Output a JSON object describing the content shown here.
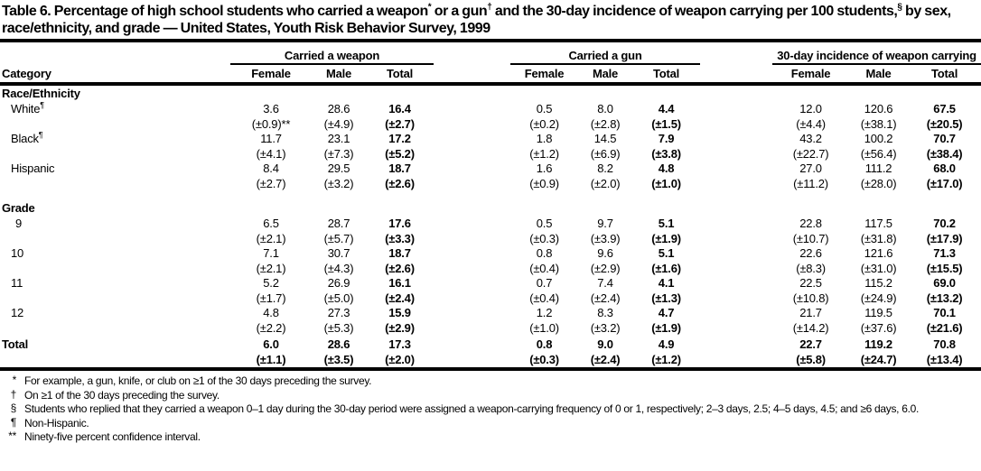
{
  "page": {
    "background": "#ffffff",
    "text_color": "#000000"
  },
  "title_segments": [
    {
      "text": "Table 6. Percentage of high school students who carried a weapon",
      "sup": false
    },
    {
      "text": "*",
      "sup": true
    },
    {
      "text": " or a gun",
      "sup": false
    },
    {
      "text": "†",
      "sup": true
    },
    {
      "text": " and the 30-day incidence of weapon carrying per 100 students,",
      "sup": false
    },
    {
      "text": "§",
      "sup": true
    },
    {
      "text": " by sex, race/ethnicity, and grade — United States, Youth Risk Behavior Survey, 1999",
      "sup": false
    }
  ],
  "table": {
    "category_header": "Category",
    "groups": [
      {
        "label": "Carried a weapon",
        "columns": [
          "Female",
          "Male",
          "Total"
        ]
      },
      {
        "label": "Carried a gun",
        "columns": [
          "Female",
          "Male",
          "Total"
        ]
      },
      {
        "label": "30-day incidence of weapon carrying",
        "columns": [
          "Female",
          "Male",
          "Total"
        ]
      }
    ],
    "sections": [
      {
        "label": "Race/Ethnicity",
        "rows": [
          {
            "category": "White",
            "marker": "¶",
            "values": [
              "3.6",
              "28.6",
              "16.4",
              "0.5",
              "8.0",
              "4.4",
              "12.0",
              "120.6",
              "67.5"
            ],
            "ci": [
              "(±0.9)**",
              "(±4.9)",
              "(±2.7)",
              "(±0.2)",
              "(±2.8)",
              "(±1.5)",
              "(±4.4)",
              "(±38.1)",
              "(±20.5)"
            ]
          },
          {
            "category": "Black",
            "marker": "¶",
            "values": [
              "11.7",
              "23.1",
              "17.2",
              "1.8",
              "14.5",
              "7.9",
              "43.2",
              "100.2",
              "70.7"
            ],
            "ci": [
              "(±4.1)",
              "(±7.3)",
              "(±5.2)",
              "(±1.2)",
              "(±6.9)",
              "(±3.8)",
              "(±22.7)",
              "(±56.4)",
              "(±38.4)"
            ]
          },
          {
            "category": "Hispanic",
            "marker": "",
            "values": [
              "8.4",
              "29.5",
              "18.7",
              "1.6",
              "8.2",
              "4.8",
              "27.0",
              "111.2",
              "68.0"
            ],
            "ci": [
              "(±2.7)",
              "(±3.2)",
              "(±2.6)",
              "(±0.9)",
              "(±2.0)",
              "(±1.0)",
              "(±11.2)",
              "(±28.0)",
              "(±17.0)"
            ]
          }
        ]
      },
      {
        "label": "Grade",
        "rows": [
          {
            "category": "9",
            "marker": "",
            "values": [
              "6.5",
              "28.7",
              "17.6",
              "0.5",
              "9.7",
              "5.1",
              "22.8",
              "117.5",
              "70.2"
            ],
            "ci": [
              "(±2.1)",
              "(±5.7)",
              "(±3.3)",
              "(±0.3)",
              "(±3.9)",
              "(±1.9)",
              "(±10.7)",
              "(±31.8)",
              "(±17.9)"
            ]
          },
          {
            "category": "10",
            "marker": "",
            "values": [
              "7.1",
              "30.7",
              "18.7",
              "0.8",
              "9.6",
              "5.1",
              "22.6",
              "121.6",
              "71.3"
            ],
            "ci": [
              "(±2.1)",
              "(±4.3)",
              "(±2.6)",
              "(±0.4)",
              "(±2.9)",
              "(±1.6)",
              "(±8.3)",
              "(±31.0)",
              "(±15.5)"
            ]
          },
          {
            "category": "11",
            "marker": "",
            "values": [
              "5.2",
              "26.9",
              "16.1",
              "0.7",
              "7.4",
              "4.1",
              "22.5",
              "115.2",
              "69.0"
            ],
            "ci": [
              "(±1.7)",
              "(±5.0)",
              "(±2.4)",
              "(±0.4)",
              "(±2.4)",
              "(±1.3)",
              "(±10.8)",
              "(±24.9)",
              "(±13.2)"
            ]
          },
          {
            "category": "12",
            "marker": "",
            "values": [
              "4.8",
              "27.3",
              "15.9",
              "1.2",
              "8.3",
              "4.7",
              "21.7",
              "119.5",
              "70.1"
            ],
            "ci": [
              "(±2.2)",
              "(±5.3)",
              "(±2.9)",
              "(±1.0)",
              "(±3.2)",
              "(±1.9)",
              "(±14.2)",
              "(±37.6)",
              "(±21.6)"
            ]
          }
        ]
      }
    ],
    "total_row": {
      "category": "Total",
      "marker": "",
      "values": [
        "6.0",
        "28.6",
        "17.3",
        "0.8",
        "9.0",
        "4.9",
        "22.7",
        "119.2",
        "70.8"
      ],
      "ci": [
        "(±1.1)",
        "(±3.5)",
        "(±2.0)",
        "(±0.3)",
        "(±2.4)",
        "(±1.2)",
        "(±5.8)",
        "(±24.7)",
        "(±13.4)"
      ]
    }
  },
  "footnotes": [
    {
      "marker": "*",
      "text": "For example, a gun, knife, or club on ≥1 of the 30 days preceding the survey."
    },
    {
      "marker": "†",
      "text": "On ≥1 of the 30 days preceding the survey."
    },
    {
      "marker": "§",
      "text": "Students who replied that they carried a weapon 0–1 day during the 30-day period were assigned a weapon-carrying frequency of 0 or 1, respectively; 2–3 days, 2.5; 4–5 days, 4.5; and ≥6 days, 6.0."
    },
    {
      "marker": "¶",
      "text": "Non-Hispanic."
    },
    {
      "marker": "**",
      "text": "Ninety-five percent confidence interval."
    }
  ]
}
